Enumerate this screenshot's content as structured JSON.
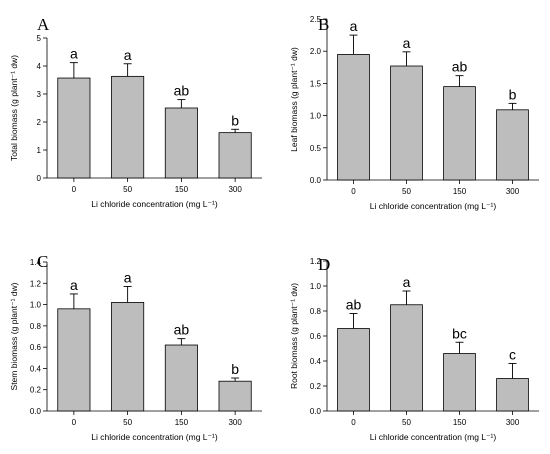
{
  "chart_data": [
    {
      "type": "bar",
      "panel_label": "A",
      "categories": [
        "0",
        "50",
        "150",
        "300"
      ],
      "values": [
        3.57,
        3.63,
        2.5,
        1.62
      ],
      "errors": [
        0.55,
        0.45,
        0.3,
        0.12
      ],
      "significance": [
        "a",
        "a",
        "ab",
        "b"
      ],
      "ylabel": "Total biomass (g plant⁻¹ dw)",
      "xlabel": "Li chloride concentration (mg L⁻¹)",
      "ylim": [
        0,
        5
      ],
      "yticks": [
        0,
        1,
        2,
        3,
        4,
        5
      ],
      "ytick_labels": [
        "0",
        "1",
        "2",
        "3",
        "4",
        "5"
      ]
    },
    {
      "type": "bar",
      "panel_label": "B",
      "categories": [
        "0",
        "50",
        "150",
        "300"
      ],
      "values": [
        1.95,
        1.77,
        1.45,
        1.09
      ],
      "errors": [
        0.3,
        0.22,
        0.17,
        0.1
      ],
      "significance": [
        "a",
        "a",
        "ab",
        "b"
      ],
      "ylabel": "Leaf biomass (g plant⁻¹ dw)",
      "xlabel": "Li chloride concentration (mg L⁻¹)",
      "ylim": [
        0,
        2.5
      ],
      "yticks": [
        0,
        0.5,
        1,
        1.5,
        2,
        2.5
      ],
      "ytick_labels": [
        "0.0",
        "0.5",
        "1.0",
        "1.5",
        "2.0",
        "2.5"
      ]
    },
    {
      "type": "bar",
      "panel_label": "C",
      "categories": [
        "0",
        "50",
        "150",
        "300"
      ],
      "values": [
        0.96,
        1.02,
        0.62,
        0.28
      ],
      "errors": [
        0.14,
        0.15,
        0.06,
        0.03
      ],
      "significance": [
        "a",
        "a",
        "ab",
        "b"
      ],
      "ylabel": "Stem biomass (g plant⁻¹ dw)",
      "xlabel": "Li chloride concentration (mg L⁻¹)",
      "ylim": [
        0,
        1.4
      ],
      "yticks": [
        0,
        0.2,
        0.4,
        0.6,
        0.8,
        1,
        1.2,
        1.4
      ],
      "ytick_labels": [
        "0.0",
        "0.2",
        "0.4",
        "0.6",
        "0.8",
        "1.0",
        "1.2",
        "1.4"
      ]
    },
    {
      "type": "bar",
      "panel_label": "D",
      "categories": [
        "0",
        "50",
        "150",
        "300"
      ],
      "values": [
        0.66,
        0.85,
        0.46,
        0.26
      ],
      "errors": [
        0.12,
        0.11,
        0.09,
        0.12
      ],
      "significance": [
        "ab",
        "a",
        "bc",
        "c"
      ],
      "ylabel": "Root biomass (g plant⁻¹ dw)",
      "xlabel": "Li chloride concentration (mg L⁻¹)",
      "ylim": [
        0,
        1.2
      ],
      "yticks": [
        0,
        0.2,
        0.4,
        0.6,
        0.8,
        1,
        1.2
      ],
      "ytick_labels": [
        "0.0",
        "0.2",
        "0.4",
        "0.6",
        "0.8",
        "1.0",
        "1.2"
      ]
    }
  ]
}
